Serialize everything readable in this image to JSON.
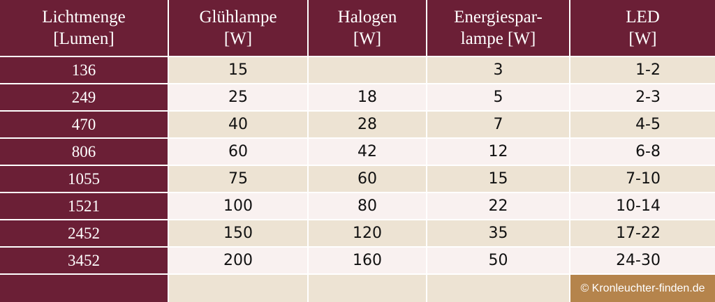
{
  "table": {
    "header": [
      [
        "Lichtmenge",
        "[Lumen]"
      ],
      [
        "Glühlampe",
        "[W]"
      ],
      [
        "Halogen",
        "[W]"
      ],
      [
        "Energiespar-",
        "lampe [W]"
      ],
      [
        "LED",
        "[W]"
      ]
    ],
    "rows": [
      [
        136,
        15,
        null,
        3,
        "1-2"
      ],
      [
        249,
        25,
        18,
        5,
        "2-3"
      ],
      [
        470,
        40,
        28,
        7,
        "4-5"
      ],
      [
        806,
        60,
        42,
        12,
        "6-8"
      ],
      [
        1055,
        75,
        60,
        15,
        "7-10"
      ],
      [
        1521,
        100,
        80,
        22,
        "10-14"
      ],
      [
        2452,
        150,
        120,
        35,
        "17-22"
      ],
      [
        3452,
        200,
        160,
        50,
        "24-30"
      ]
    ],
    "footer": "© Kronleuchter-finden.de"
  }
}
